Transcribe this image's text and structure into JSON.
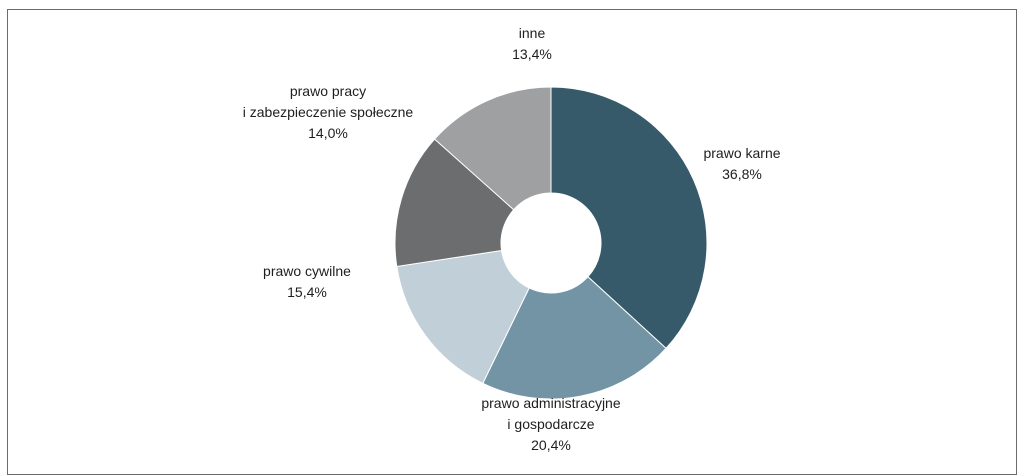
{
  "chart_data": {
    "type": "pie",
    "donut": true,
    "slices": [
      {
        "label_lines": [
          "prawo karne"
        ],
        "value": 36.8,
        "value_label": "36,8%",
        "color": "#365a6a"
      },
      {
        "label_lines": [
          "prawo administracyjne",
          "i gospodarcze"
        ],
        "value": 20.4,
        "value_label": "20,4%",
        "color": "#7294a5"
      },
      {
        "label_lines": [
          "prawo cywilne"
        ],
        "value": 15.4,
        "value_label": "15,4%",
        "color": "#c1d0d8"
      },
      {
        "label_lines": [
          "prawo pracy",
          "i zabezpieczenie społeczne"
        ],
        "value": 14.0,
        "value_label": "14,0%",
        "color": "#6c6d6f"
      },
      {
        "label_lines": [
          "inne"
        ],
        "value": 13.4,
        "value_label": "13,4%",
        "color": "#9fa0a2"
      }
    ]
  }
}
